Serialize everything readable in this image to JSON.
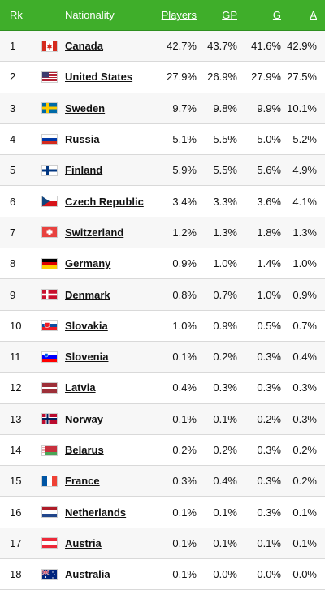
{
  "headers": {
    "rk": "Rk",
    "nationality": "Nationality",
    "players": "Players",
    "gp": "GP",
    "g": "G",
    "a": "A"
  },
  "rows": [
    {
      "rk": "1",
      "flag": "canada-flag-icon",
      "country": "Canada",
      "players": "42.7%",
      "gp": "43.7%",
      "g": "41.6%",
      "a": "42.9%"
    },
    {
      "rk": "2",
      "flag": "usa-flag-icon",
      "country": "United States",
      "players": "27.9%",
      "gp": "26.9%",
      "g": "27.9%",
      "a": "27.5%"
    },
    {
      "rk": "3",
      "flag": "sweden-flag-icon",
      "country": "Sweden",
      "players": "9.7%",
      "gp": "9.8%",
      "g": "9.9%",
      "a": "10.1%"
    },
    {
      "rk": "4",
      "flag": "russia-flag-icon",
      "country": "Russia",
      "players": "5.1%",
      "gp": "5.5%",
      "g": "5.0%",
      "a": "5.2%"
    },
    {
      "rk": "5",
      "flag": "finland-flag-icon",
      "country": "Finland",
      "players": "5.9%",
      "gp": "5.5%",
      "g": "5.6%",
      "a": "4.9%"
    },
    {
      "rk": "6",
      "flag": "czech-flag-icon",
      "country": "Czech Republic",
      "players": "3.4%",
      "gp": "3.3%",
      "g": "3.6%",
      "a": "4.1%"
    },
    {
      "rk": "7",
      "flag": "switzerland-flag-icon",
      "country": "Switzerland",
      "players": "1.2%",
      "gp": "1.3%",
      "g": "1.8%",
      "a": "1.3%"
    },
    {
      "rk": "8",
      "flag": "germany-flag-icon",
      "country": "Germany",
      "players": "0.9%",
      "gp": "1.0%",
      "g": "1.4%",
      "a": "1.0%"
    },
    {
      "rk": "9",
      "flag": "denmark-flag-icon",
      "country": "Denmark",
      "players": "0.8%",
      "gp": "0.7%",
      "g": "1.0%",
      "a": "0.9%"
    },
    {
      "rk": "10",
      "flag": "slovakia-flag-icon",
      "country": "Slovakia",
      "players": "1.0%",
      "gp": "0.9%",
      "g": "0.5%",
      "a": "0.7%"
    },
    {
      "rk": "11",
      "flag": "slovenia-flag-icon",
      "country": "Slovenia",
      "players": "0.1%",
      "gp": "0.2%",
      "g": "0.3%",
      "a": "0.4%"
    },
    {
      "rk": "12",
      "flag": "latvia-flag-icon",
      "country": "Latvia",
      "players": "0.4%",
      "gp": "0.3%",
      "g": "0.3%",
      "a": "0.3%"
    },
    {
      "rk": "13",
      "flag": "norway-flag-icon",
      "country": "Norway",
      "players": "0.1%",
      "gp": "0.1%",
      "g": "0.2%",
      "a": "0.3%"
    },
    {
      "rk": "14",
      "flag": "belarus-flag-icon",
      "country": "Belarus",
      "players": "0.2%",
      "gp": "0.2%",
      "g": "0.3%",
      "a": "0.2%"
    },
    {
      "rk": "15",
      "flag": "france-flag-icon",
      "country": "France",
      "players": "0.3%",
      "gp": "0.4%",
      "g": "0.3%",
      "a": "0.2%"
    },
    {
      "rk": "16",
      "flag": "netherlands-flag-icon",
      "country": "Netherlands",
      "players": "0.1%",
      "gp": "0.1%",
      "g": "0.3%",
      "a": "0.1%"
    },
    {
      "rk": "17",
      "flag": "austria-flag-icon",
      "country": "Austria",
      "players": "0.1%",
      "gp": "0.1%",
      "g": "0.1%",
      "a": "0.1%"
    },
    {
      "rk": "18",
      "flag": "australia-flag-icon",
      "country": "Australia",
      "players": "0.1%",
      "gp": "0.0%",
      "g": "0.0%",
      "a": "0.0%"
    }
  ],
  "colors": {
    "header_bg": "#3fae2a",
    "header_text": "#ffffff",
    "row_alt_bg": "#f7f7f7",
    "divider": "#d9d9d9"
  }
}
